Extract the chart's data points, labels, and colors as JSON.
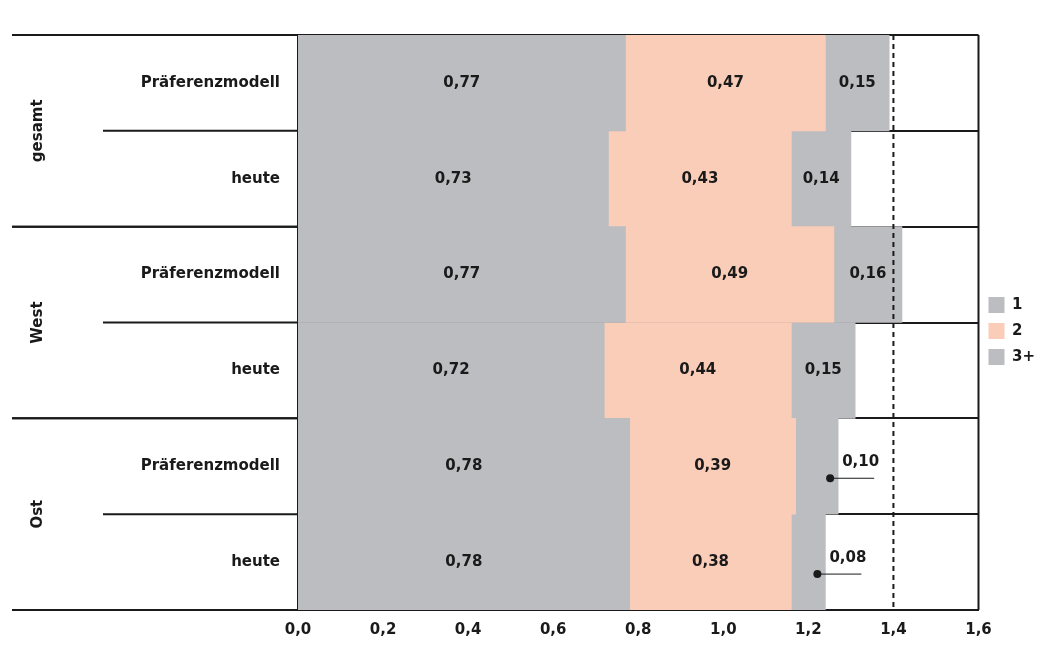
{
  "chart_data": {
    "type": "bar",
    "orientation": "horizontal",
    "stacked": true,
    "grid": "y",
    "legend": "right",
    "categories": [
      "Präferenzmodell",
      "heute",
      "Präferenzmodell",
      "heute",
      "Präferenzmodell",
      "heute"
    ],
    "series": [
      {
        "name": "1",
        "color": "#bcbdc1",
        "values": [
          0.77,
          0.73,
          0.77,
          0.72,
          0.78,
          0.78
        ],
        "value_labels": [
          "0,77",
          "0,73",
          "0,77",
          "0,72",
          "0,78",
          "0,78"
        ]
      },
      {
        "name": "2",
        "color": "#f9cdb8",
        "values": [
          0.47,
          0.43,
          0.49,
          0.44,
          0.39,
          0.38
        ],
        "value_labels": [
          "0,47",
          "0,43",
          "0,49",
          "0,44",
          "0,39",
          "0,38"
        ]
      },
      {
        "name": "3+",
        "color": "#bcbdc1",
        "values": [
          0.15,
          0.14,
          0.16,
          0.15,
          0.1,
          0.08
        ],
        "value_labels": [
          "0,15",
          "0,14",
          "0,16",
          "0,15",
          "0,10",
          "0,08"
        ]
      }
    ],
    "xlim": [
      0,
      1.6
    ],
    "xticks": [
      {
        "value": 0,
        "label": "0,0"
      },
      {
        "value": 0.2,
        "label": "0,2"
      },
      {
        "value": 0.4,
        "label": "0,4"
      },
      {
        "value": 0.6,
        "label": "0,6"
      },
      {
        "value": 0.8,
        "label": "0,8"
      },
      {
        "value": 1.0,
        "label": "1,0"
      },
      {
        "value": 1.2,
        "label": "1,2"
      },
      {
        "value": 1.4,
        "label": "1,4"
      },
      {
        "value": 1.6,
        "label": "1,6"
      }
    ],
    "ref_lines": [
      {
        "axis": "x",
        "value": 1.4,
        "line_style": "dashed"
      }
    ],
    "annotations": [
      "gesamt",
      "West",
      "Ost"
    ]
  }
}
